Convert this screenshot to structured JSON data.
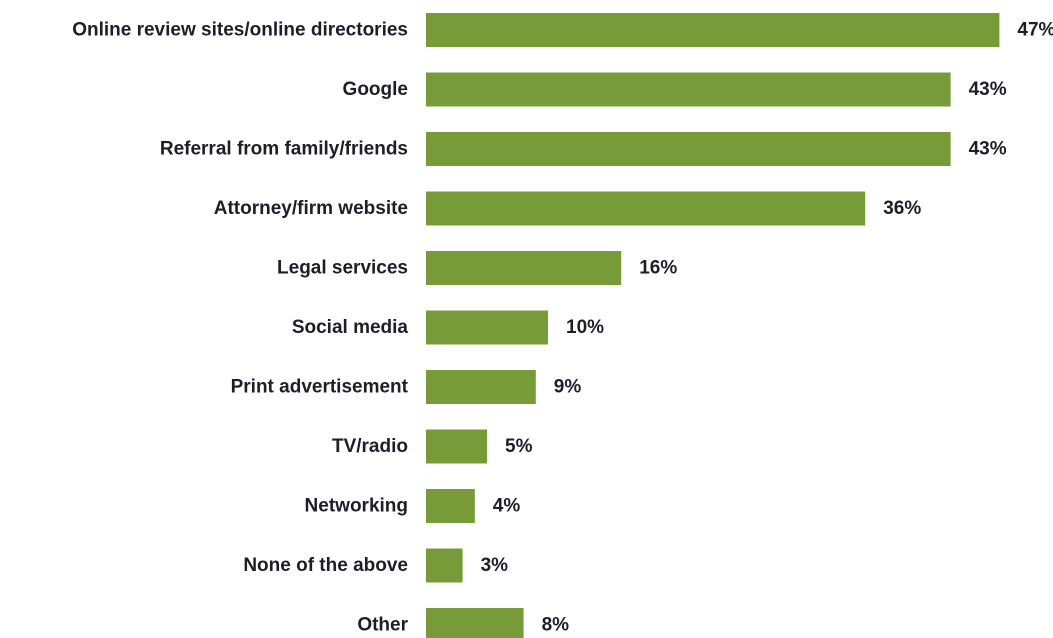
{
  "chart_data": {
    "type": "bar",
    "orientation": "horizontal",
    "categories": [
      "Online review sites/online directories",
      "Google",
      "Referral from family/friends",
      "Attorney/firm website",
      "Legal services",
      "Social media",
      "Print advertisement",
      "TV/radio",
      "Networking",
      "None of the above",
      "Other"
    ],
    "values": [
      47,
      43,
      43,
      36,
      16,
      10,
      9,
      5,
      4,
      3,
      8
    ],
    "value_labels": [
      "47%",
      "43%",
      "43%",
      "36%",
      "16%",
      "10%",
      "9%",
      "5%",
      "4%",
      "3%",
      "8%"
    ],
    "unit": "%",
    "bar_color": "#789b3a",
    "text_color": "#1e1e2a",
    "grid": false,
    "legend": "none"
  }
}
